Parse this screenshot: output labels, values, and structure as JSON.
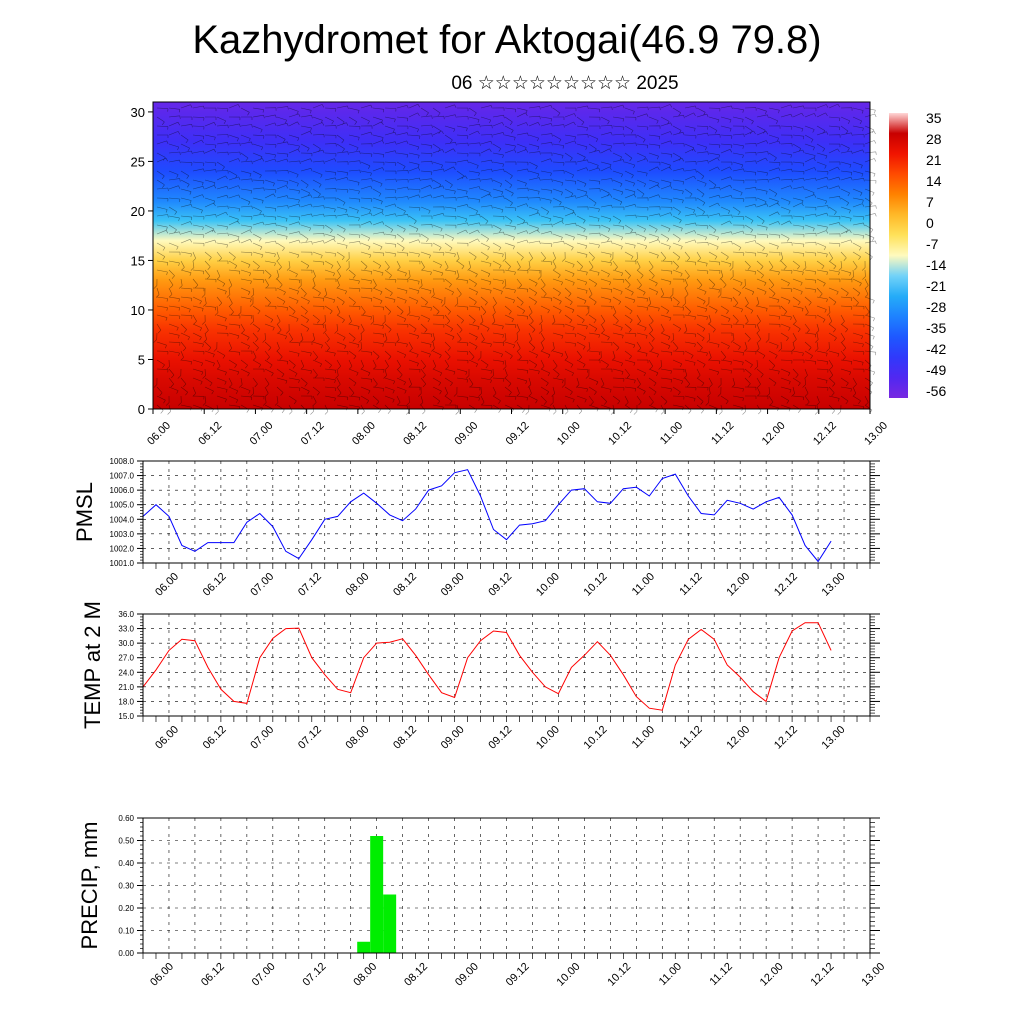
{
  "header": {
    "title": "Kazhydromet for Aktogai(46.9 79.8)",
    "subtitle": "06 ☆☆☆☆☆☆☆☆☆ 2025"
  },
  "chart_data": [
    {
      "type": "heatmap",
      "title": "",
      "ylabel": "",
      "ylim": [
        0,
        31
      ],
      "y_ticks": [
        "0",
        "5",
        "10",
        "15",
        "20",
        "25",
        "30"
      ],
      "x_tick_labels": [
        "06.00",
        "06.12",
        "07.00",
        "07.12",
        "08.00",
        "08.12",
        "09.00",
        "09.12",
        "10.00",
        "10.12",
        "11.00",
        "11.12",
        "12.00",
        "12.12",
        "13.00"
      ],
      "colorbar": {
        "labels": [
          "35",
          "28",
          "21",
          "14",
          "7",
          "0",
          "-7",
          "-14",
          "-21",
          "-28",
          "-35",
          "-42",
          "-49",
          "-56"
        ],
        "range": [
          -63,
          35
        ]
      },
      "colors": {
        "hot": "#c80000",
        "warm": "#ff5a00",
        "mild": "#ffdc55",
        "cold": "#33b8f0",
        "very_cold": "#1e5aff",
        "extreme_cold": "#7a2ae6"
      },
      "temperature_profile": {
        "altitude": [
          0,
          3,
          5,
          8,
          10,
          13,
          15,
          17,
          19,
          21,
          24,
          27,
          30,
          31
        ],
        "temperature": [
          28,
          25,
          22,
          17,
          12,
          4,
          -4,
          -14,
          -24,
          -34,
          -44,
          -52,
          -58,
          -60
        ]
      },
      "overlay": "wind barbs"
    },
    {
      "type": "line",
      "ylabel": "PMSL",
      "ylim": [
        1001.0,
        1008.0
      ],
      "y_ticks": [
        "1001.0",
        "1002.0",
        "1003.0",
        "1004.0",
        "1005.0",
        "1006.0",
        "1007.0",
        "1008.0"
      ],
      "x_tick_labels": [
        "06.00",
        "06.12",
        "07.00",
        "07.12",
        "08.00",
        "08.12",
        "09.00",
        "09.12",
        "10.00",
        "10.12",
        "11.00",
        "11.12",
        "12.00",
        "12.12",
        "13.00"
      ],
      "color": "#0000ff",
      "series": [
        {
          "x_hours": [
            0,
            3,
            6,
            9,
            12,
            15,
            18,
            21,
            24,
            27,
            30,
            33,
            36,
            39,
            42,
            45,
            48,
            51,
            54,
            57,
            60,
            63,
            66,
            69,
            72,
            75,
            78,
            81,
            84,
            87,
            90,
            93,
            96,
            99,
            102,
            105,
            108,
            111,
            114,
            117,
            120,
            123,
            126,
            129,
            132,
            135,
            138,
            141,
            144,
            147,
            150,
            153,
            156,
            159
          ],
          "values": [
            1004.2,
            1005.0,
            1004.2,
            1002.2,
            1001.8,
            1002.4,
            1002.4,
            1002.4,
            1003.8,
            1004.4,
            1003.5,
            1001.8,
            1001.3,
            1002.6,
            1004.0,
            1004.2,
            1005.2,
            1005.8,
            1005.1,
            1004.3,
            1003.9,
            1004.7,
            1006.0,
            1006.3,
            1007.2,
            1007.4,
            1005.6,
            1003.3,
            1002.6,
            1003.6,
            1003.7,
            1003.9,
            1005.0,
            1006.0,
            1006.1,
            1005.2,
            1005.1,
            1006.1,
            1006.2,
            1005.6,
            1006.8,
            1007.1,
            1005.6,
            1004.4,
            1004.3,
            1005.3,
            1005.1,
            1004.7,
            1005.2,
            1005.5,
            1004.3,
            1002.2,
            1001.1,
            1002.5
          ]
        }
      ]
    },
    {
      "type": "line",
      "ylabel": "TEMP at 2 M",
      "ylim": [
        15.0,
        36.0
      ],
      "y_ticks": [
        "15.0",
        "18.0",
        "21.0",
        "24.0",
        "27.0",
        "30.0",
        "33.0",
        "36.0"
      ],
      "x_tick_labels": [
        "06.00",
        "06.12",
        "07.00",
        "07.12",
        "08.00",
        "08.12",
        "09.00",
        "09.12",
        "10.00",
        "10.12",
        "11.00",
        "11.12",
        "12.00",
        "12.12",
        "13.00"
      ],
      "color": "#ff0000",
      "series": [
        {
          "x_hours": [
            0,
            3,
            6,
            9,
            12,
            15,
            18,
            21,
            24,
            27,
            30,
            33,
            36,
            39,
            42,
            45,
            48,
            51,
            54,
            57,
            60,
            63,
            66,
            69,
            72,
            75,
            78,
            81,
            84,
            87,
            90,
            93,
            96,
            99,
            102,
            105,
            108,
            111,
            114,
            117,
            120,
            123,
            126,
            129,
            132,
            135,
            138,
            141,
            144,
            147,
            150,
            153,
            156,
            159
          ],
          "values": [
            21.0,
            24.5,
            28.5,
            30.8,
            30.5,
            25.0,
            20.5,
            18.0,
            17.6,
            27.0,
            31.0,
            33.0,
            33.1,
            27.0,
            23.5,
            20.5,
            19.8,
            27.0,
            30.0,
            30.2,
            30.9,
            27.5,
            23.5,
            19.8,
            18.8,
            27.0,
            30.5,
            32.5,
            32.2,
            27.5,
            24.0,
            21.0,
            19.6,
            25.0,
            27.5,
            30.3,
            27.5,
            23.5,
            19.0,
            16.6,
            16.2,
            25.5,
            30.8,
            32.8,
            30.8,
            25.5,
            23.0,
            20.0,
            18.0,
            27.0,
            32.5,
            34.2,
            34.2,
            28.5
          ]
        }
      ]
    },
    {
      "type": "bar",
      "ylabel": "PRECIP, mm",
      "ylim": [
        0.0,
        0.6
      ],
      "y_ticks": [
        "0.00",
        "0.10",
        "0.20",
        "0.30",
        "0.40",
        "0.50",
        "0.60"
      ],
      "x_tick_labels": [
        "06.00",
        "06.12",
        "07.00",
        "07.12",
        "08.00",
        "08.12",
        "09.00",
        "09.12",
        "10.00",
        "10.12",
        "11.00",
        "11.12",
        "12.00",
        "12.12",
        "13.00"
      ],
      "color": "#00ee00",
      "series": [
        {
          "x_hours": [
            51,
            54,
            57
          ],
          "values": [
            0.05,
            0.52,
            0.26
          ]
        }
      ]
    }
  ]
}
